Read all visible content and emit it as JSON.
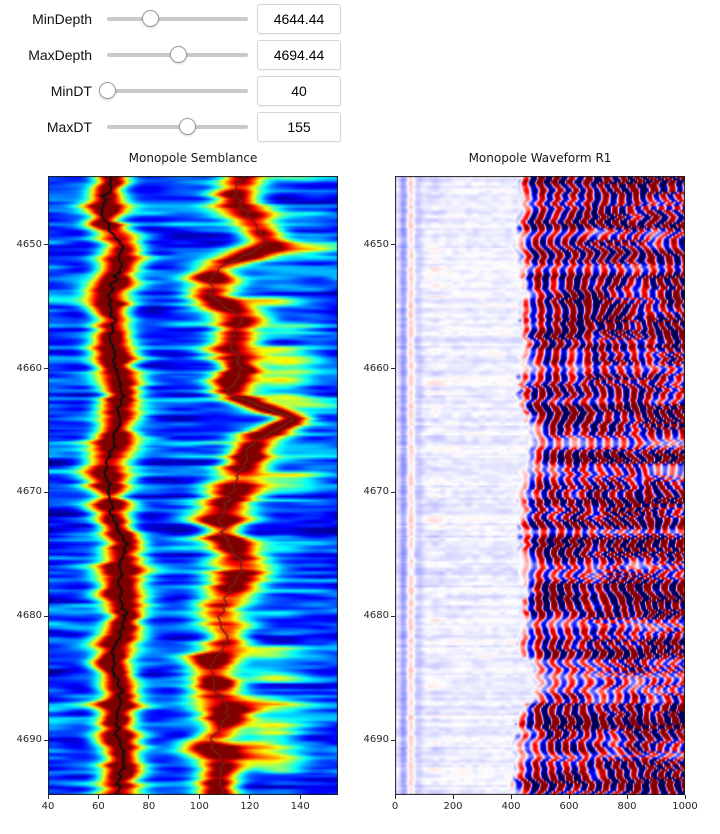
{
  "controls": {
    "sliders": [
      {
        "label": "MinDepth",
        "value": "4644.44",
        "fraction": 0.305
      },
      {
        "label": "MaxDepth",
        "value": "4694.44",
        "fraction": 0.504
      },
      {
        "label": "MinDT",
        "value": "40",
        "fraction": 0.0
      },
      {
        "label": "MaxDT",
        "value": "155",
        "fraction": 0.574
      }
    ]
  },
  "chart_data": [
    {
      "type": "heatmap",
      "title": "Monopole Semblance",
      "colormap": "jet",
      "xlabel": "",
      "ylabel": "",
      "x_range": [
        40,
        155
      ],
      "depth_range": [
        4644.44,
        4694.44
      ],
      "xticks": [
        40,
        60,
        80,
        100,
        120,
        140
      ],
      "yticks": [
        4650,
        4660,
        4670,
        4680,
        4690
      ],
      "grid": false,
      "legend": "none",
      "anchor_depths": [
        4644,
        4646,
        4648,
        4650,
        4652,
        4654,
        4656,
        4658,
        4660,
        4662,
        4664,
        4666,
        4668,
        4670,
        4672,
        4674,
        4676,
        4678,
        4680,
        4682,
        4684,
        4686,
        4688,
        4690,
        4692,
        4694
      ],
      "series": [
        {
          "name": "compressional-dt-pick",
          "color": "#101010",
          "values": [
            67,
            63,
            62,
            70,
            68,
            64,
            66,
            65,
            67,
            69,
            68,
            66,
            63,
            64,
            66,
            71,
            69,
            68,
            71,
            67,
            65,
            69,
            67,
            68,
            70,
            68
          ]
        },
        {
          "name": "shear-dt-pick",
          "color": "#73201a",
          "values": [
            118,
            114,
            121,
            127,
            107,
            104,
            117,
            112,
            116,
            111,
            138,
            121,
            117,
            113,
            108,
            111,
            118,
            112,
            108,
            111,
            104,
            107,
            112,
            104,
            110,
            108
          ]
        }
      ],
      "ridge_sigma": {
        "compressional": 5.4,
        "shear": 6.8
      },
      "background_level": 0.16
    },
    {
      "type": "heatmap",
      "title": "Monopole Waveform R1",
      "colormap": "seismic",
      "xlabel": "",
      "ylabel": "",
      "x_range": [
        0,
        1000
      ],
      "depth_range": [
        4644.44,
        4694.44
      ],
      "xticks": [
        0,
        200,
        400,
        600,
        800,
        1000
      ],
      "yticks": [
        4650,
        4660,
        4670,
        4680,
        4690
      ],
      "grid": false,
      "legend": "none",
      "anchor_depths": [
        4644,
        4646,
        4648,
        4650,
        4652,
        4654,
        4656,
        4658,
        4660,
        4662,
        4664,
        4666,
        4668,
        4670,
        4672,
        4674,
        4676,
        4678,
        4680,
        4682,
        4684,
        4686,
        4688,
        4690,
        4692,
        4694
      ],
      "first_arrival_time": [
        430,
        442,
        425,
        415,
        432,
        452,
        440,
        446,
        430,
        420,
        458,
        468,
        450,
        438,
        428,
        425,
        440,
        450,
        444,
        430,
        470,
        490,
        440,
        415,
        420,
        415
      ],
      "wave_period": 54,
      "precursor_bands": [
        {
          "t": 30,
          "amp": -0.16,
          "sigma": 10
        },
        {
          "t": 55,
          "amp": 0.12,
          "sigma": 9
        },
        {
          "t": 80,
          "amp": -0.07,
          "sigma": 12
        },
        {
          "t": 140,
          "amp": 0.06,
          "sigma": 22
        }
      ]
    }
  ]
}
